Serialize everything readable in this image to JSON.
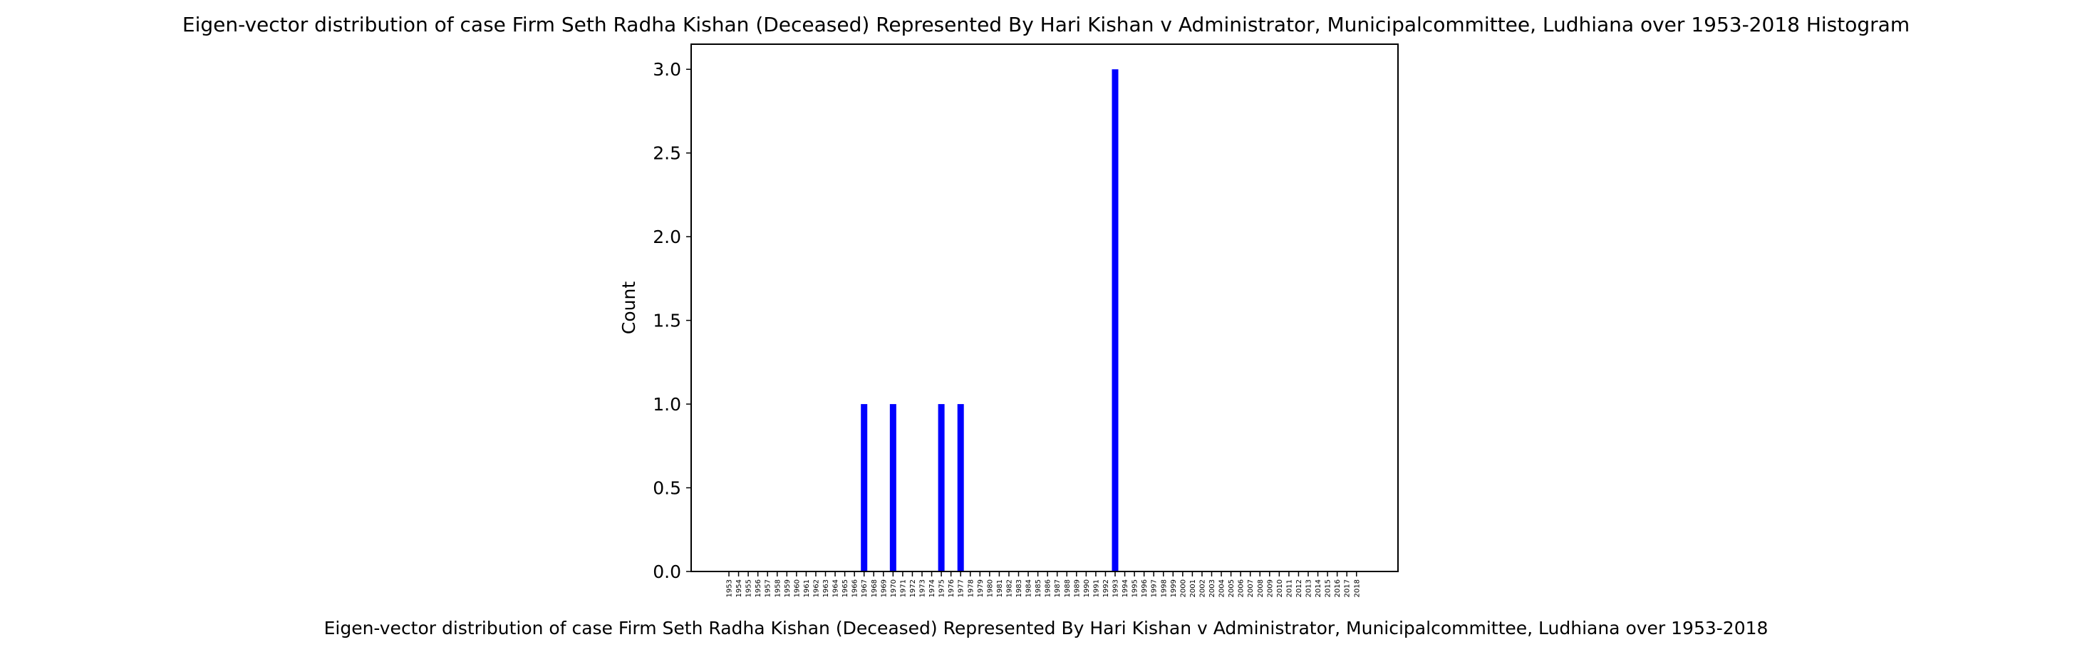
{
  "chart_data": {
    "type": "bar",
    "title": "Eigen-vector distribution of case Firm Seth Radha Kishan (Deceased) Represented By Hari Kishan v Administrator, Municipalcommittee, Ludhiana over 1953-2018 Histogram",
    "xlabel": "Eigen-vector distribution of case Firm Seth Radha Kishan (Deceased) Represented By Hari Kishan v Administrator, Municipalcommittee, Ludhiana over 1953-2018",
    "ylabel": "Count",
    "categories": [
      "1953",
      "1954",
      "1955",
      "1956",
      "1957",
      "1958",
      "1959",
      "1960",
      "1961",
      "1962",
      "1963",
      "1964",
      "1965",
      "1966",
      "1967",
      "1968",
      "1969",
      "1970",
      "1971",
      "1972",
      "1973",
      "1974",
      "1975",
      "1976",
      "1977",
      "1978",
      "1979",
      "1980",
      "1981",
      "1982",
      "1983",
      "1984",
      "1985",
      "1986",
      "1987",
      "1988",
      "1989",
      "1990",
      "1991",
      "1992",
      "1993",
      "1994",
      "1995",
      "1996",
      "1997",
      "1998",
      "1999",
      "2000",
      "2001",
      "2002",
      "2003",
      "2004",
      "2005",
      "2006",
      "2007",
      "2008",
      "2009",
      "2010",
      "2011",
      "2012",
      "2013",
      "2014",
      "2015",
      "2016",
      "2017",
      "2018"
    ],
    "values": [
      0,
      0,
      0,
      0,
      0,
      0,
      0,
      0,
      0,
      0,
      0,
      0,
      0,
      0,
      1,
      0,
      0,
      1,
      0,
      0,
      0,
      0,
      1,
      0,
      1,
      0,
      0,
      0,
      0,
      0,
      0,
      0,
      0,
      0,
      0,
      0,
      0,
      0,
      0,
      0,
      3,
      0,
      0,
      0,
      0,
      0,
      0,
      0,
      0,
      0,
      0,
      0,
      0,
      0,
      0,
      0,
      0,
      0,
      0,
      0,
      0,
      0,
      0,
      0,
      0,
      0
    ],
    "yticks": [
      "0.0",
      "0.5",
      "1.0",
      "1.5",
      "2.0",
      "2.5",
      "3.0"
    ],
    "ylim": [
      0,
      3.15
    ],
    "bar_color": "#0000ff",
    "grid": false,
    "legend": "none"
  }
}
